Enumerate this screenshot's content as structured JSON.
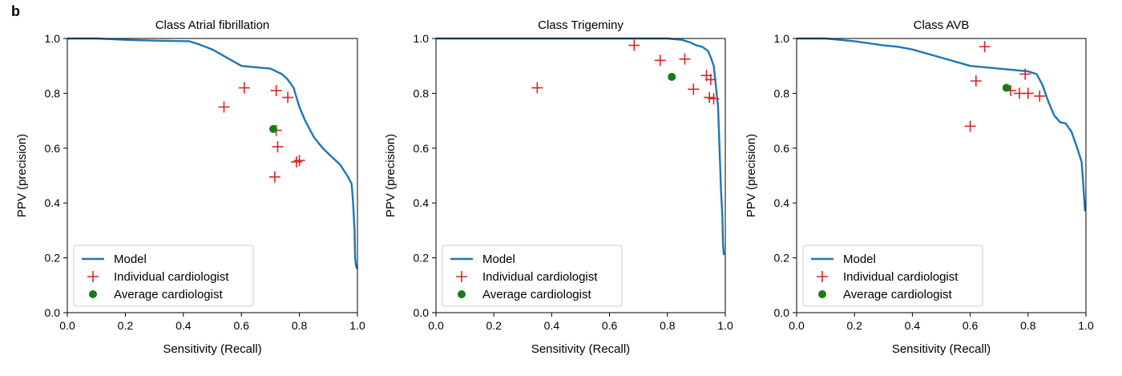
{
  "figure": {
    "panel_letter": "b"
  },
  "colors": {
    "model": "#1f77b4",
    "individual": "#d62728",
    "average": "#1a7a1a"
  },
  "chart_data": [
    {
      "type": "line",
      "title": "Class Atrial fibrillation",
      "xlabel": "Sensitivity (Recall)",
      "ylabel": "PPV (precision)",
      "xlim": [
        0,
        1
      ],
      "ylim": [
        0,
        1
      ],
      "xticks": [
        "0.0",
        "0.2",
        "0.4",
        "0.6",
        "0.8",
        "1.0"
      ],
      "yticks": [
        "0.0",
        "0.2",
        "0.4",
        "0.6",
        "0.8",
        "1.0"
      ],
      "legend_position": "lower-left",
      "legend": [
        "Model",
        "Individual cardiologist",
        "Average cardiologist"
      ],
      "series": [
        {
          "name": "Model",
          "kind": "line",
          "points": [
            [
              0.0,
              1.0
            ],
            [
              0.1,
              1.0
            ],
            [
              0.2,
              0.995
            ],
            [
              0.3,
              0.992
            ],
            [
              0.42,
              0.99
            ],
            [
              0.45,
              0.98
            ],
            [
              0.5,
              0.96
            ],
            [
              0.55,
              0.93
            ],
            [
              0.6,
              0.9
            ],
            [
              0.65,
              0.895
            ],
            [
              0.7,
              0.89
            ],
            [
              0.74,
              0.87
            ],
            [
              0.76,
              0.85
            ],
            [
              0.78,
              0.82
            ],
            [
              0.8,
              0.75
            ],
            [
              0.82,
              0.7
            ],
            [
              0.85,
              0.64
            ],
            [
              0.88,
              0.6
            ],
            [
              0.91,
              0.57
            ],
            [
              0.94,
              0.54
            ],
            [
              0.965,
              0.5
            ],
            [
              0.98,
              0.47
            ],
            [
              0.985,
              0.4
            ],
            [
              0.99,
              0.3
            ],
            [
              0.992,
              0.2
            ],
            [
              0.995,
              0.17
            ],
            [
              1.0,
              0.16
            ]
          ]
        },
        {
          "name": "Individual cardiologist",
          "kind": "plus",
          "points": [
            [
              0.54,
              0.75
            ],
            [
              0.61,
              0.82
            ],
            [
              0.72,
              0.81
            ],
            [
              0.76,
              0.785
            ],
            [
              0.72,
              0.665
            ],
            [
              0.725,
              0.605
            ],
            [
              0.79,
              0.55
            ],
            [
              0.8,
              0.555
            ],
            [
              0.715,
              0.495
            ]
          ]
        },
        {
          "name": "Average cardiologist",
          "kind": "dot",
          "points": [
            [
              0.71,
              0.67
            ]
          ]
        }
      ]
    },
    {
      "type": "line",
      "title": "Class Trigeminy",
      "xlabel": "Sensitivity (Recall)",
      "ylabel": "PPV (precision)",
      "xlim": [
        0,
        1
      ],
      "ylim": [
        0,
        1
      ],
      "xticks": [
        "0.0",
        "0.2",
        "0.4",
        "0.6",
        "0.8",
        "1.0"
      ],
      "yticks": [
        "0.0",
        "0.2",
        "0.4",
        "0.6",
        "0.8",
        "1.0"
      ],
      "legend_position": "lower-left",
      "legend": [
        "Model",
        "Individual cardiologist",
        "Average cardiologist"
      ],
      "series": [
        {
          "name": "Model",
          "kind": "line",
          "points": [
            [
              0.0,
              1.0
            ],
            [
              0.3,
              1.0
            ],
            [
              0.6,
              1.0
            ],
            [
              0.8,
              1.0
            ],
            [
              0.85,
              0.995
            ],
            [
              0.88,
              0.985
            ],
            [
              0.9,
              0.975
            ],
            [
              0.92,
              0.97
            ],
            [
              0.94,
              0.955
            ],
            [
              0.95,
              0.93
            ],
            [
              0.96,
              0.9
            ],
            [
              0.965,
              0.85
            ],
            [
              0.97,
              0.8
            ],
            [
              0.975,
              0.75
            ],
            [
              0.98,
              0.6
            ],
            [
              0.985,
              0.45
            ],
            [
              0.99,
              0.35
            ],
            [
              0.992,
              0.25
            ],
            [
              0.995,
              0.21
            ]
          ]
        },
        {
          "name": "Individual cardiologist",
          "kind": "plus",
          "points": [
            [
              0.35,
              0.82
            ],
            [
              0.685,
              0.975
            ],
            [
              0.775,
              0.92
            ],
            [
              0.86,
              0.925
            ],
            [
              0.935,
              0.865
            ],
            [
              0.95,
              0.85
            ],
            [
              0.89,
              0.815
            ],
            [
              0.945,
              0.785
            ],
            [
              0.96,
              0.78
            ]
          ]
        },
        {
          "name": "Average cardiologist",
          "kind": "dot",
          "points": [
            [
              0.815,
              0.86
            ]
          ]
        }
      ]
    },
    {
      "type": "line",
      "title": "Class AVB",
      "xlabel": "Sensitivity (Recall)",
      "ylabel": "PPV (precision)",
      "xlim": [
        0,
        1
      ],
      "ylim": [
        0,
        1
      ],
      "xticks": [
        "0.0",
        "0.2",
        "0.4",
        "0.6",
        "0.8",
        "1.0"
      ],
      "yticks": [
        "0.0",
        "0.2",
        "0.4",
        "0.6",
        "0.8",
        "1.0"
      ],
      "legend_position": "lower-left",
      "legend": [
        "Model",
        "Individual cardiologist",
        "Average cardiologist"
      ],
      "series": [
        {
          "name": "Model",
          "kind": "line",
          "points": [
            [
              0.0,
              1.0
            ],
            [
              0.1,
              1.0
            ],
            [
              0.2,
              0.99
            ],
            [
              0.3,
              0.975
            ],
            [
              0.35,
              0.97
            ],
            [
              0.4,
              0.96
            ],
            [
              0.5,
              0.93
            ],
            [
              0.6,
              0.9
            ],
            [
              0.7,
              0.89
            ],
            [
              0.8,
              0.88
            ],
            [
              0.83,
              0.87
            ],
            [
              0.85,
              0.83
            ],
            [
              0.87,
              0.77
            ],
            [
              0.89,
              0.72
            ],
            [
              0.91,
              0.695
            ],
            [
              0.93,
              0.69
            ],
            [
              0.95,
              0.66
            ],
            [
              0.97,
              0.6
            ],
            [
              0.985,
              0.55
            ],
            [
              0.99,
              0.48
            ],
            [
              0.995,
              0.4
            ],
            [
              0.997,
              0.37
            ]
          ]
        },
        {
          "name": "Individual cardiologist",
          "kind": "plus",
          "points": [
            [
              0.65,
              0.97
            ],
            [
              0.62,
              0.845
            ],
            [
              0.79,
              0.87
            ],
            [
              0.74,
              0.81
            ],
            [
              0.77,
              0.8
            ],
            [
              0.8,
              0.8
            ],
            [
              0.84,
              0.79
            ],
            [
              0.6,
              0.68
            ]
          ]
        },
        {
          "name": "Average cardiologist",
          "kind": "dot",
          "points": [
            [
              0.725,
              0.82
            ]
          ]
        }
      ]
    }
  ]
}
